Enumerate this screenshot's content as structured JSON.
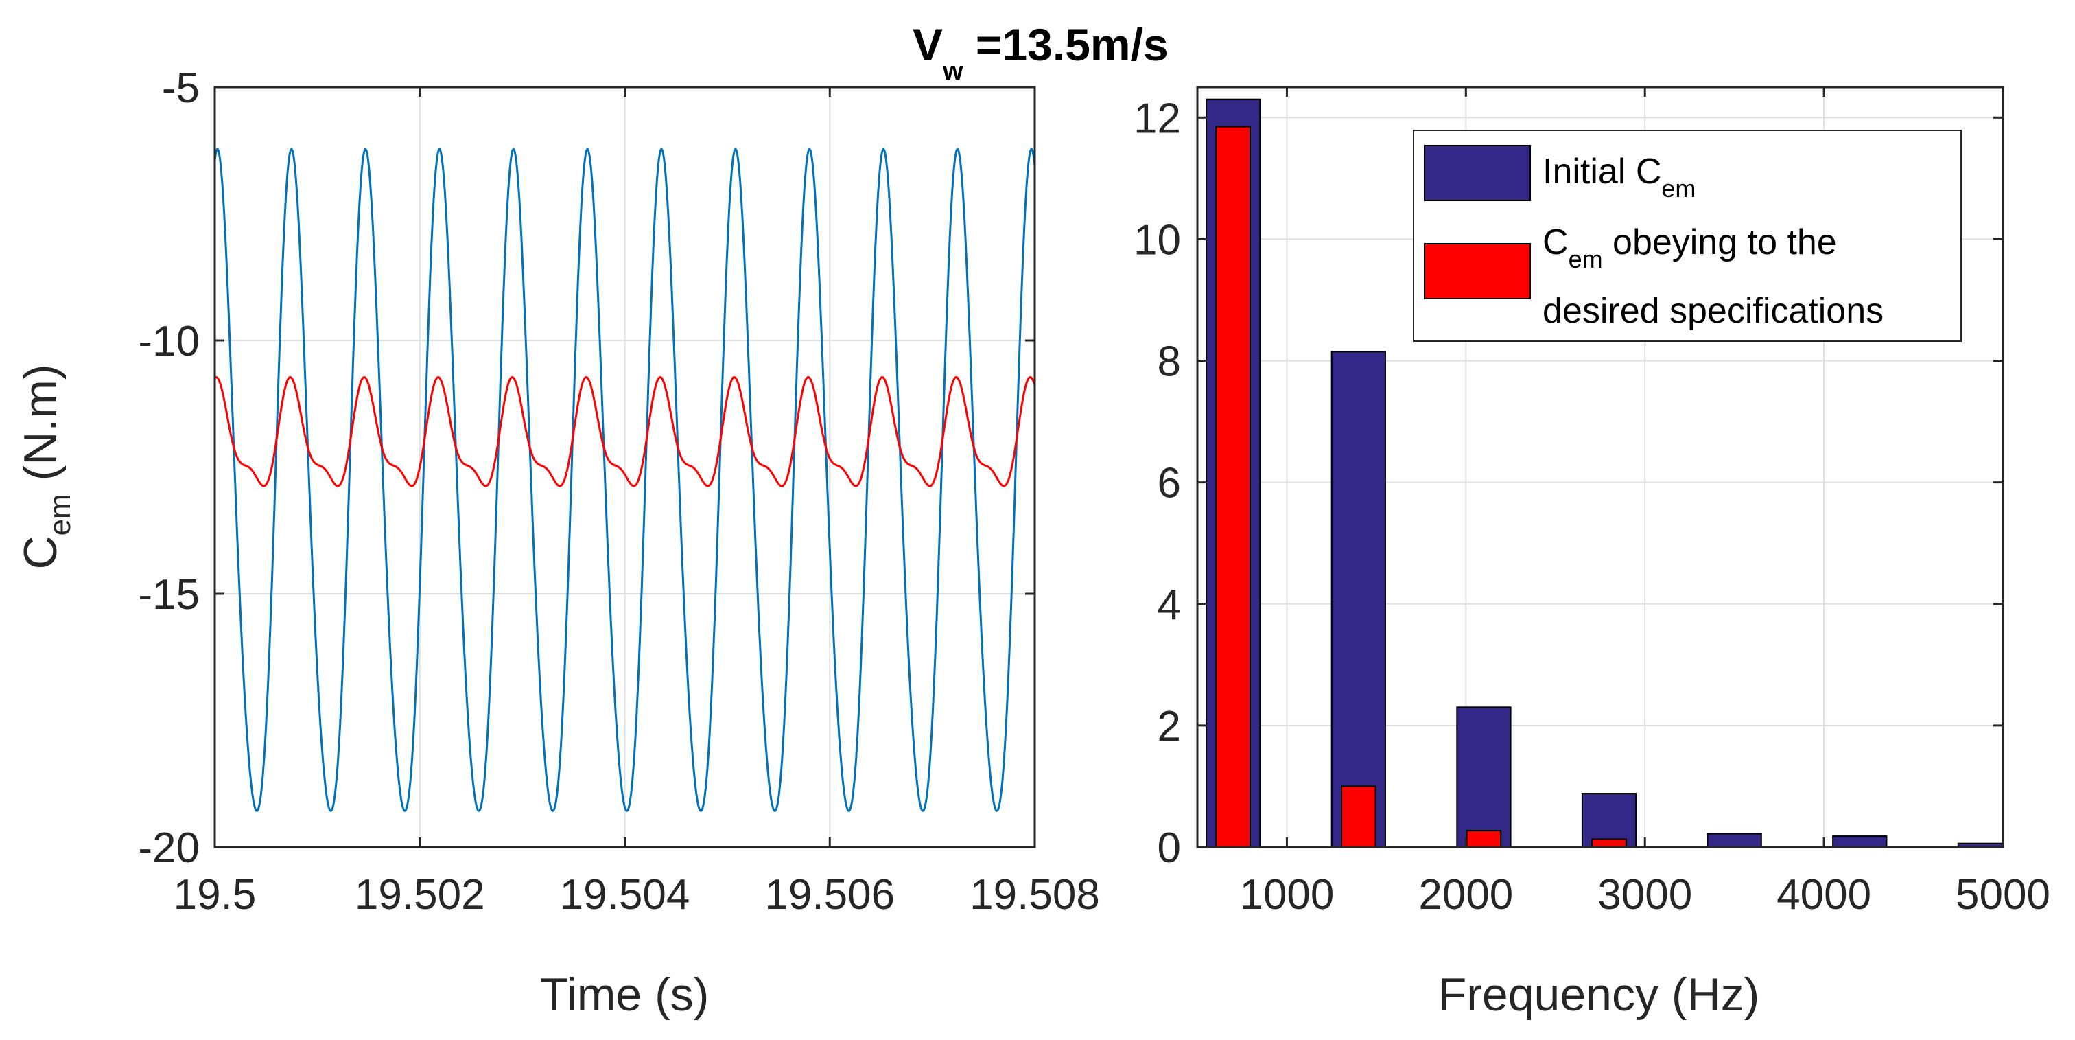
{
  "title": {
    "main": "V",
    "sub": "w",
    "rest": " =13.5m/s"
  },
  "colors": {
    "blue": "#0072BD",
    "red": "#FF0000",
    "navy": "#332888",
    "grid": "#E0E0E0",
    "axis": "#262626"
  },
  "chart_data": [
    {
      "type": "line",
      "xlabel": "Time (s)",
      "ylabel": {
        "main": "C",
        "sub": "em",
        "rest": " (N.m)"
      },
      "xlim": [
        19.5,
        19.508
      ],
      "ylim": [
        -20,
        -5
      ],
      "xticks": [
        19.5,
        19.502,
        19.504,
        19.506,
        19.508
      ],
      "xtick_labels": [
        "19.5",
        "19.502",
        "19.504",
        "19.506",
        "19.508"
      ],
      "yticks": [
        -20,
        -15,
        -10,
        -5
      ],
      "ytick_labels": [
        "-20",
        "-15",
        "-10",
        "-5"
      ],
      "grid": true,
      "series": [
        {
          "name": "Initial Cem",
          "color": "#0072BD",
          "period": 0.000722,
          "mean": -13.2,
          "amp1": 6.5,
          "amp2": 0.55,
          "phase": -0.3
        },
        {
          "name": "Cem obeying to the desired specifications",
          "color": "#FF0000",
          "period": 0.000722,
          "mean": -12.0,
          "amp1": 0.95,
          "amp2": 0.35,
          "phase": -0.3
        }
      ]
    },
    {
      "type": "bar",
      "xlabel": "Frequency (Hz)",
      "xlim": [
        500,
        5000
      ],
      "ylim": [
        0,
        12.5
      ],
      "xticks": [
        1000,
        2000,
        3000,
        4000,
        5000
      ],
      "xtick_labels": [
        "1000",
        "2000",
        "3000",
        "4000",
        "5000"
      ],
      "yticks": [
        0,
        2,
        4,
        6,
        8,
        10,
        12
      ],
      "ytick_labels": [
        "0",
        "2",
        "4",
        "6",
        "8",
        "10",
        "12"
      ],
      "grid": true,
      "categories": [
        700,
        1400,
        2100,
        2800,
        3500,
        4200,
        4900
      ],
      "series": [
        {
          "name": "Initial Cem",
          "color": "#332888",
          "values": [
            12.3,
            8.15,
            2.3,
            0.88,
            0.22,
            0.18,
            0.06
          ]
        },
        {
          "name": "Cem obeying to the desired specifications",
          "color": "#FF0000",
          "values": [
            11.85,
            1.0,
            0.27,
            0.13,
            0,
            0,
            0
          ]
        }
      ],
      "legend": {
        "position": "top-right",
        "entries": [
          {
            "label": "Initial C",
            "sub": "em",
            "rest": ""
          },
          {
            "label": "C",
            "sub": "em",
            "rest": " obeying to the",
            "line2": "desired specifications"
          }
        ]
      }
    }
  ]
}
